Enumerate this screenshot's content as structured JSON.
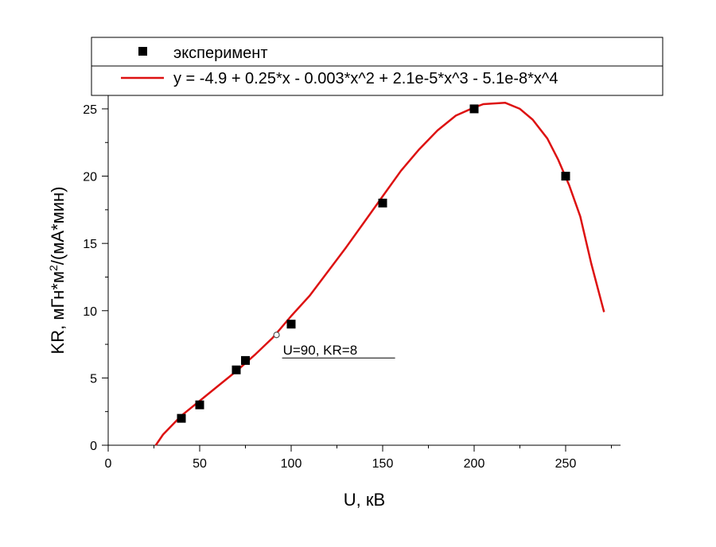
{
  "chart_data": {
    "type": "scatter",
    "xlabel": "U, кВ",
    "ylabel_main": "KR, мГн*м",
    "ylabel_sup": "2",
    "ylabel_tail": "/(мА*мин)",
    "xlim": [
      0,
      280
    ],
    "ylim": [
      0,
      26
    ],
    "xticks": [
      0,
      50,
      100,
      150,
      200,
      250
    ],
    "yticks": [
      0,
      5,
      10,
      15,
      20,
      25
    ],
    "grid": false,
    "legend_position": "top",
    "colors": {
      "experiment": "#000000",
      "fit": "#dd1111",
      "marker_hollow": "#555555"
    },
    "series": [
      {
        "name": "эксперимент",
        "kind": "scatter",
        "marker": "square",
        "x": [
          40,
          50,
          70,
          75,
          100,
          150,
          200,
          250
        ],
        "y": [
          2,
          3,
          5.6,
          6.3,
          9,
          18,
          25,
          20
        ]
      },
      {
        "name": "y = -4.9 + 0.25*x - 0.003*x^2 + 2.1e-5*x^3 - 5.1e-8*x^4",
        "kind": "line",
        "x": [
          26,
          30,
          40,
          50,
          60,
          70,
          80,
          90,
          100,
          110,
          120,
          130,
          140,
          150,
          160,
          170,
          180,
          190,
          200,
          205,
          210,
          217,
          225,
          232,
          240,
          246,
          252,
          258,
          264,
          271
        ],
        "y": [
          0,
          0.8,
          2.2,
          3.3,
          4.4,
          5.5,
          6.7,
          8.0,
          9.6,
          11.1,
          12.9,
          14.7,
          16.6,
          18.5,
          20.4,
          22.0,
          23.4,
          24.5,
          25.1,
          25.35,
          25.4,
          25.45,
          25.0,
          24.2,
          22.8,
          21.2,
          19.3,
          17.0,
          13.5,
          9.9
        ]
      }
    ],
    "annotation": {
      "text": "U=90, KR=8",
      "x": 92,
      "y": 8.2
    }
  }
}
